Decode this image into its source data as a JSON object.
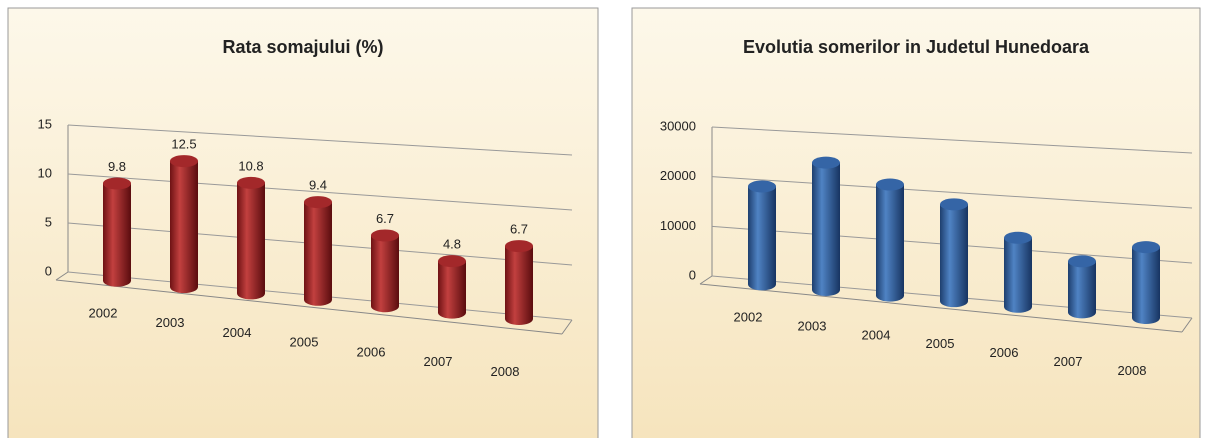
{
  "chart_data": [
    {
      "type": "bar",
      "title": "Rata somajului (%)",
      "categories": [
        "2002",
        "2003",
        "2004",
        "2005",
        "2006",
        "2007",
        "2008"
      ],
      "values": [
        9.8,
        12.5,
        10.8,
        9.4,
        6.7,
        4.8,
        6.7
      ],
      "value_labels": [
        "9.8",
        "12.5",
        "10.8",
        "9.4",
        "6.7",
        "4.8",
        "6.7"
      ],
      "color": "#a3282a",
      "ylim": [
        0,
        15
      ],
      "yticks": [
        0,
        5,
        10,
        15
      ],
      "grid": true
    },
    {
      "type": "bar",
      "title": "Evolutia somerilor in Judetul Hunedoara",
      "categories": [
        "2002",
        "2003",
        "2004",
        "2005",
        "2006",
        "2007",
        "2008"
      ],
      "values": [
        19500,
        25000,
        21500,
        18500,
        13000,
        9500,
        13000
      ],
      "color": "#3565a6",
      "ylim": [
        0,
        30000
      ],
      "yticks": [
        0,
        10000,
        20000,
        30000
      ],
      "grid": true
    }
  ]
}
